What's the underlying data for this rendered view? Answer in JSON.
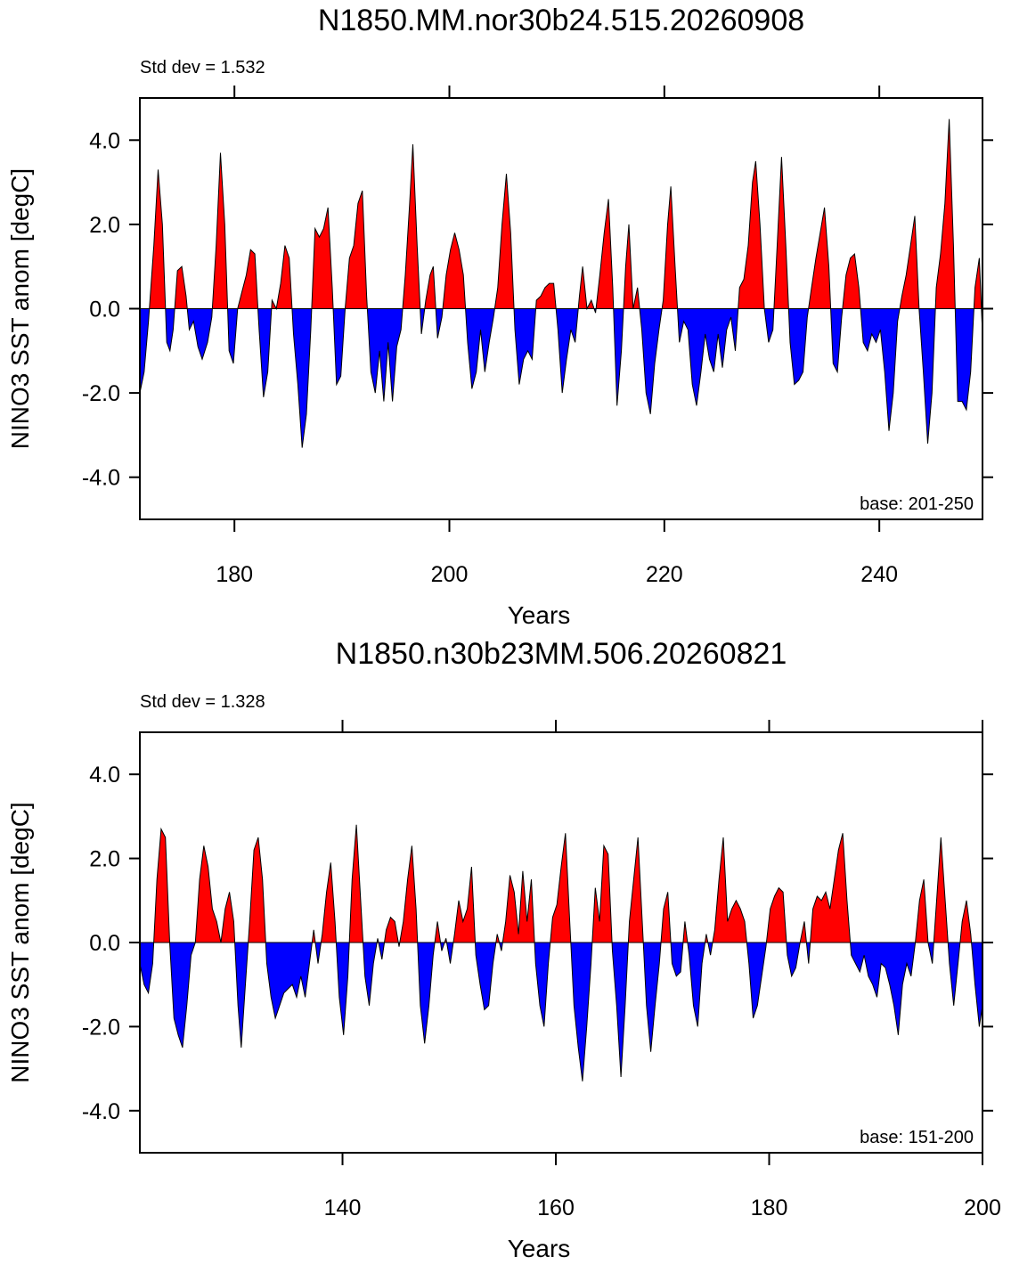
{
  "chart_data": [
    {
      "type": "area",
      "title": "N1850.MM.nor30b24.515.20260908",
      "annotation_left": "Std dev = 1.532",
      "annotation_right": "base: 201-250",
      "xlabel": "Years",
      "ylabel": "NINO3 SST anom [degC]",
      "positive_color": "red",
      "negative_color": "blue",
      "xlim": [
        171.2,
        249.6
      ],
      "ylim": [
        -5,
        5
      ],
      "xticks": [
        180,
        200,
        220,
        240
      ],
      "yticks": [
        {
          "value": -4,
          "label": "-4.0"
        },
        {
          "value": -2,
          "label": "-2.0"
        },
        {
          "value": 0,
          "label": "0.0"
        },
        {
          "value": 2,
          "label": "2.0"
        },
        {
          "value": 4,
          "label": "4.0"
        }
      ],
      "x": [
        171.2,
        171.6,
        172.0,
        172.5,
        172.9,
        173.3,
        173.7,
        174.0,
        174.3,
        174.7,
        175.1,
        175.5,
        175.8,
        176.2,
        176.6,
        177.0,
        177.5,
        177.9,
        178.3,
        178.7,
        179.1,
        179.5,
        179.9,
        180.3,
        180.7,
        181.1,
        181.5,
        181.9,
        182.3,
        182.7,
        183.1,
        183.5,
        183.9,
        184.3,
        184.7,
        185.1,
        185.5,
        185.9,
        186.3,
        186.7,
        187.1,
        187.5,
        187.9,
        188.3,
        188.7,
        189.1,
        189.5,
        189.9,
        190.3,
        190.7,
        191.1,
        191.5,
        191.9,
        192.3,
        192.7,
        193.1,
        193.5,
        193.9,
        194.3,
        194.7,
        195.1,
        195.5,
        195.9,
        196.3,
        196.6,
        197.0,
        197.4,
        197.8,
        198.2,
        198.5,
        198.9,
        199.3,
        199.7,
        200.1,
        200.5,
        200.9,
        201.3,
        201.7,
        202.1,
        202.5,
        202.9,
        203.3,
        203.7,
        204.1,
        204.5,
        204.9,
        205.3,
        205.7,
        206.1,
        206.5,
        206.9,
        207.3,
        207.7,
        208.1,
        208.5,
        208.9,
        209.3,
        209.7,
        210.1,
        210.5,
        210.9,
        211.3,
        211.7,
        212.1,
        212.4,
        212.8,
        213.2,
        213.6,
        214.0,
        214.4,
        214.8,
        215.2,
        215.6,
        216.0,
        216.4,
        216.7,
        217.1,
        217.5,
        217.9,
        218.3,
        218.7,
        219.1,
        219.5,
        219.9,
        220.3,
        220.6,
        221.0,
        221.4,
        221.8,
        222.2,
        222.6,
        223.0,
        223.4,
        223.8,
        224.2,
        224.6,
        225.0,
        225.4,
        225.8,
        226.2,
        226.6,
        227.0,
        227.4,
        227.8,
        228.2,
        228.5,
        228.9,
        229.3,
        229.7,
        230.1,
        230.5,
        230.9,
        231.3,
        231.7,
        232.1,
        232.5,
        232.9,
        233.3,
        233.7,
        234.1,
        234.5,
        234.9,
        235.3,
        235.7,
        236.1,
        236.5,
        236.9,
        237.3,
        237.7,
        238.1,
        238.5,
        238.9,
        239.3,
        239.7,
        240.1,
        240.5,
        240.9,
        241.3,
        241.7,
        242.1,
        242.5,
        242.9,
        243.3,
        243.7,
        244.1,
        244.5,
        244.9,
        245.3,
        245.7,
        246.1,
        246.5,
        246.9,
        247.3,
        247.7,
        248.1,
        248.5,
        248.9,
        249.3,
        249.6
      ],
      "values": [
        -2.0,
        -1.5,
        -0.3,
        1.5,
        3.3,
        2.0,
        -0.8,
        -1.0,
        -0.5,
        0.9,
        1.0,
        0.3,
        -0.5,
        -0.3,
        -0.9,
        -1.2,
        -0.8,
        -0.2,
        1.5,
        3.7,
        2.0,
        -1.0,
        -1.3,
        0.0,
        0.4,
        0.8,
        1.4,
        1.3,
        -0.5,
        -2.1,
        -1.5,
        0.2,
        0.0,
        0.6,
        1.5,
        1.2,
        -0.6,
        -1.8,
        -3.3,
        -2.5,
        -0.5,
        1.9,
        1.7,
        1.9,
        2.4,
        0.5,
        -1.8,
        -1.6,
        0.0,
        1.2,
        1.5,
        2.5,
        2.8,
        0.3,
        -1.5,
        -2.0,
        -1.0,
        -2.2,
        -0.8,
        -2.2,
        -0.9,
        -0.5,
        0.8,
        2.5,
        3.9,
        1.5,
        -0.6,
        0.2,
        0.8,
        1.0,
        -0.7,
        -0.2,
        0.8,
        1.4,
        1.8,
        1.4,
        0.8,
        -0.8,
        -1.9,
        -1.5,
        -0.5,
        -1.5,
        -0.8,
        -0.2,
        0.5,
        2.0,
        3.2,
        1.8,
        -0.5,
        -1.8,
        -1.2,
        -1.0,
        -1.2,
        0.2,
        0.3,
        0.5,
        0.6,
        0.6,
        -0.5,
        -2.0,
        -1.2,
        -0.5,
        -0.8,
        0.3,
        1.0,
        0.0,
        0.2,
        -0.1,
        0.8,
        1.8,
        2.6,
        0.5,
        -2.3,
        -1.0,
        1.0,
        2.0,
        0.0,
        0.5,
        -0.5,
        -2.0,
        -2.5,
        -1.3,
        -0.5,
        0.2,
        2.0,
        2.9,
        1.0,
        -0.8,
        -0.3,
        -0.5,
        -1.8,
        -2.3,
        -1.5,
        -0.6,
        -1.2,
        -1.5,
        -0.6,
        -1.4,
        -0.5,
        -0.2,
        -1.0,
        0.5,
        0.7,
        1.5,
        3.0,
        3.5,
        2.0,
        0.0,
        -0.8,
        -0.5,
        1.5,
        3.6,
        1.5,
        -0.8,
        -1.8,
        -1.7,
        -1.5,
        -0.2,
        0.5,
        1.2,
        1.8,
        2.4,
        1.0,
        -1.3,
        -1.5,
        -0.2,
        0.8,
        1.2,
        1.3,
        0.5,
        -0.8,
        -1.0,
        -0.6,
        -0.8,
        -0.5,
        -1.5,
        -2.9,
        -2.0,
        -0.3,
        0.3,
        0.8,
        1.5,
        2.2,
        0.0,
        -1.5,
        -3.2,
        -2.0,
        0.5,
        1.3,
        2.5,
        4.5,
        1.5,
        -2.2,
        -2.2,
        -2.4,
        -1.5,
        0.5,
        1.2,
        -0.6
      ]
    },
    {
      "type": "area",
      "title": "N1850.n30b23MM.506.20260821",
      "annotation_left": "Std dev = 1.328",
      "annotation_right": "base: 151-200",
      "xlabel": "Years",
      "ylabel": "NINO3 SST anom [degC]",
      "positive_color": "red",
      "negative_color": "blue",
      "xlim": [
        121,
        200
      ],
      "ylim": [
        -5,
        5
      ],
      "xticks": [
        140,
        160,
        180,
        200
      ],
      "yticks": [
        {
          "value": -4,
          "label": "-4.0"
        },
        {
          "value": -2,
          "label": "-2.0"
        },
        {
          "value": 0,
          "label": "0.0"
        },
        {
          "value": 2,
          "label": "2.0"
        },
        {
          "value": 4,
          "label": "4.0"
        }
      ],
      "x": [
        121.0,
        121.4,
        121.8,
        122.2,
        122.6,
        123.0,
        123.4,
        123.8,
        124.2,
        124.6,
        125.0,
        125.4,
        125.8,
        126.2,
        126.6,
        127.0,
        127.4,
        127.8,
        128.2,
        128.6,
        129.0,
        129.4,
        129.8,
        130.2,
        130.5,
        130.9,
        131.3,
        131.7,
        132.1,
        132.5,
        132.9,
        133.3,
        133.7,
        134.1,
        134.5,
        134.9,
        135.3,
        135.7,
        136.1,
        136.5,
        136.9,
        137.3,
        137.7,
        138.1,
        138.5,
        138.9,
        139.3,
        139.7,
        140.1,
        140.5,
        140.9,
        141.3,
        141.7,
        142.1,
        142.5,
        142.9,
        143.3,
        143.7,
        144.1,
        144.5,
        144.9,
        145.3,
        145.7,
        146.1,
        146.5,
        146.9,
        147.3,
        147.7,
        148.1,
        148.5,
        148.9,
        149.3,
        149.7,
        150.1,
        150.5,
        150.9,
        151.3,
        151.7,
        152.1,
        152.5,
        152.9,
        153.3,
        153.7,
        154.1,
        154.5,
        154.9,
        155.3,
        155.7,
        156.1,
        156.5,
        156.9,
        157.3,
        157.7,
        158.1,
        158.5,
        158.9,
        159.3,
        159.7,
        160.1,
        160.5,
        160.9,
        161.3,
        161.7,
        162.1,
        162.5,
        162.9,
        163.3,
        163.7,
        164.1,
        164.5,
        164.9,
        165.3,
        165.7,
        166.1,
        166.5,
        166.9,
        167.3,
        167.7,
        168.1,
        168.5,
        168.9,
        169.3,
        169.7,
        170.1,
        170.5,
        170.9,
        171.3,
        171.7,
        172.1,
        172.5,
        172.9,
        173.3,
        173.7,
        174.1,
        174.5,
        174.9,
        175.3,
        175.7,
        176.1,
        176.5,
        176.9,
        177.3,
        177.7,
        178.1,
        178.5,
        178.9,
        179.3,
        179.7,
        180.1,
        180.5,
        180.9,
        181.3,
        181.7,
        182.1,
        182.5,
        182.9,
        183.3,
        183.7,
        184.1,
        184.5,
        184.9,
        185.3,
        185.7,
        186.1,
        186.5,
        186.9,
        187.3,
        187.7,
        188.1,
        188.5,
        188.9,
        189.3,
        189.7,
        190.1,
        190.5,
        190.9,
        191.3,
        191.7,
        192.1,
        192.5,
        192.9,
        193.3,
        193.7,
        194.1,
        194.5,
        194.9,
        195.3,
        195.7,
        196.1,
        196.5,
        196.9,
        197.3,
        197.7,
        198.1,
        198.5,
        198.9,
        199.3,
        199.7,
        200.0
      ],
      "values": [
        -0.5,
        -1.0,
        -1.2,
        -0.5,
        1.5,
        2.7,
        2.5,
        0.0,
        -1.8,
        -2.2,
        -2.5,
        -1.5,
        -0.3,
        0.0,
        1.5,
        2.3,
        1.8,
        0.8,
        0.5,
        0.0,
        0.8,
        1.2,
        0.5,
        -1.5,
        -2.5,
        -1.0,
        0.5,
        2.2,
        2.5,
        1.5,
        -0.5,
        -1.3,
        -1.8,
        -1.5,
        -1.2,
        -1.1,
        -1.0,
        -1.3,
        -0.8,
        -1.3,
        -0.5,
        0.3,
        -0.5,
        0.2,
        1.2,
        1.9,
        0.5,
        -1.3,
        -2.2,
        -0.8,
        1.5,
        2.8,
        1.0,
        -0.8,
        -1.5,
        -0.5,
        0.1,
        -0.4,
        0.3,
        0.6,
        0.5,
        -0.1,
        0.5,
        1.5,
        2.3,
        0.8,
        -1.5,
        -2.4,
        -1.5,
        -0.3,
        0.5,
        -0.2,
        0.1,
        -0.5,
        0.2,
        1.0,
        0.5,
        0.8,
        1.8,
        -0.3,
        -1.0,
        -1.6,
        -1.5,
        -0.5,
        0.2,
        -0.2,
        0.5,
        1.6,
        1.2,
        0.2,
        1.7,
        0.5,
        1.5,
        -0.5,
        -1.5,
        -2.0,
        -0.5,
        0.6,
        0.9,
        1.8,
        2.6,
        0.5,
        -1.5,
        -2.5,
        -3.3,
        -2.0,
        -0.5,
        1.3,
        0.5,
        2.3,
        2.1,
        -0.2,
        -1.5,
        -3.2,
        -1.5,
        0.5,
        1.5,
        2.5,
        0.5,
        -1.5,
        -2.6,
        -1.5,
        -0.5,
        0.8,
        1.2,
        -0.5,
        -0.8,
        -0.7,
        0.5,
        -0.3,
        -1.5,
        -2.0,
        -0.5,
        0.2,
        -0.3,
        0.3,
        1.5,
        2.5,
        0.5,
        0.8,
        1.0,
        0.8,
        0.5,
        -0.5,
        -1.8,
        -1.5,
        -0.8,
        -0.1,
        0.8,
        1.1,
        1.3,
        1.2,
        -0.3,
        -0.8,
        -0.6,
        0.0,
        0.5,
        -0.5,
        0.8,
        1.1,
        1.0,
        1.2,
        0.8,
        1.5,
        2.2,
        2.6,
        1.0,
        -0.3,
        -0.5,
        -0.7,
        -0.3,
        -0.8,
        -1.0,
        -1.3,
        -0.5,
        -0.6,
        -1.0,
        -1.5,
        -2.2,
        -1.0,
        -0.5,
        -0.8,
        0.0,
        1.0,
        1.5,
        0.0,
        -0.5,
        1.0,
        2.5,
        1.0,
        -0.5,
        -1.5,
        -0.5,
        0.5,
        1.0,
        0.2,
        -1.0,
        -2.0,
        -1.5
      ]
    }
  ]
}
